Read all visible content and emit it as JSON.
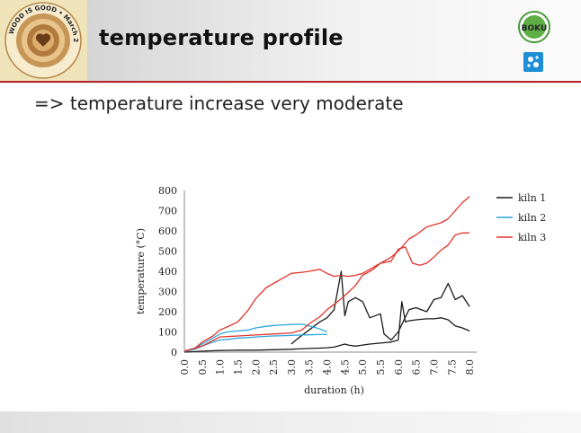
{
  "slide": {
    "title": "temperature profile",
    "bullet": "=> temperature increase very moderate",
    "logo_text": "WOOD IS GOOD • March 21st WORLD WOOD DAY",
    "boku_text": "BOKU"
  },
  "colors": {
    "accent_red": "#b8242b",
    "kiln1": "#1a1a1a",
    "kiln2": "#2aa7dc",
    "kiln3": "#e0342a"
  },
  "chart_data": {
    "type": "line",
    "xlabel": "duration (h)",
    "ylabel": "temperature (°C)",
    "xlim": [
      0,
      8.2
    ],
    "ylim": [
      0,
      800
    ],
    "xticks": [
      "0.0",
      "0.5",
      "1.0",
      "1.5",
      "2.0",
      "2.5",
      "3.0",
      "3.5",
      "4.0",
      "4.5",
      "5.0",
      "5.5",
      "6.0",
      "6.5",
      "7.0",
      "7.5",
      "8.0"
    ],
    "yticks": [
      "0",
      "100",
      "200",
      "300",
      "400",
      "500",
      "600",
      "700",
      "800"
    ],
    "legend_position": "top-right",
    "grid": "none",
    "series": [
      {
        "name": "kiln 1",
        "color": "#1a1a1a",
        "x": [
          0,
          0.5,
          1.0,
          1.5,
          2.0,
          2.5,
          3.0,
          3.2,
          3.5,
          3.8,
          4.0,
          4.2,
          4.4,
          4.5,
          4.6,
          4.8,
          5.0,
          5.2,
          5.5,
          5.8,
          6.0,
          6.1,
          6.2,
          6.3,
          6.5,
          6.8,
          7.0,
          7.2,
          7.4,
          7.6,
          7.8,
          8.0
        ],
        "y": [
          0,
          5,
          8,
          10,
          10,
          12,
          14,
          16,
          18,
          20,
          22,
          25,
          35,
          40,
          35,
          30,
          35,
          40,
          45,
          50,
          60,
          250,
          150,
          155,
          160,
          165,
          165,
          170,
          160,
          130,
          120,
          105
        ]
      },
      {
        "name": "kiln 1",
        "color": "#1a1a1a",
        "x": [
          3.0,
          3.2,
          3.5,
          3.8,
          4.0,
          4.2,
          4.4,
          4.5,
          4.6,
          4.8,
          5.0,
          5.2,
          5.5,
          5.6,
          5.8,
          6.0,
          6.3,
          6.5,
          6.8,
          7.0,
          7.2,
          7.4,
          7.6,
          7.8,
          8.0
        ],
        "y": [
          40,
          70,
          110,
          150,
          170,
          210,
          400,
          180,
          250,
          270,
          250,
          170,
          190,
          90,
          60,
          100,
          210,
          220,
          200,
          260,
          270,
          340,
          260,
          280,
          225
        ]
      },
      {
        "name": "kiln 2",
        "color": "#2aa7dc",
        "x": [
          0,
          0.3,
          0.5,
          0.8,
          1.0,
          1.2,
          1.5,
          1.8,
          2.0,
          2.3,
          2.5,
          2.8,
          3.0,
          3.3,
          3.5,
          3.8,
          4.0
        ],
        "y": [
          5,
          20,
          40,
          70,
          90,
          100,
          105,
          110,
          120,
          128,
          132,
          135,
          137,
          138,
          130,
          115,
          100
        ]
      },
      {
        "name": "kiln 2",
        "color": "#2aa7dc",
        "x": [
          0,
          0.3,
          0.5,
          0.8,
          1.0,
          1.3,
          1.5,
          1.8,
          2.0,
          2.3,
          2.5,
          2.8,
          3.0,
          3.3,
          3.5,
          3.8,
          4.0
        ],
        "y": [
          3,
          15,
          30,
          50,
          60,
          65,
          70,
          72,
          75,
          78,
          80,
          82,
          83,
          85,
          86,
          87,
          88
        ]
      },
      {
        "name": "kiln 3",
        "color": "#e0342a",
        "x": [
          0,
          0.3,
          0.5,
          0.8,
          1.0,
          1.2,
          1.5,
          1.8,
          2.0,
          2.3,
          2.5,
          2.8,
          3.0,
          3.3,
          3.5,
          3.8,
          4.0,
          4.2,
          4.4,
          4.6,
          4.8,
          5.0,
          5.2,
          5.5,
          5.8,
          6.0,
          6.3,
          6.5,
          6.8,
          7.0,
          7.2,
          7.4,
          7.6,
          7.8,
          8.0
        ],
        "y": [
          5,
          20,
          50,
          80,
          110,
          125,
          150,
          210,
          265,
          320,
          340,
          370,
          390,
          395,
          400,
          410,
          390,
          375,
          380,
          375,
          380,
          390,
          410,
          440,
          470,
          500,
          560,
          580,
          620,
          630,
          640,
          660,
          700,
          740,
          770
        ]
      },
      {
        "name": "kiln 3",
        "color": "#e0342a",
        "x": [
          0,
          0.5,
          1.0,
          1.5,
          2.0,
          2.5,
          3.0,
          3.3,
          3.5,
          3.8,
          4.0,
          4.3,
          4.5,
          4.8,
          5.0,
          5.3,
          5.5,
          5.8,
          6.0,
          6.2,
          6.4,
          6.6,
          6.8,
          7.0,
          7.2,
          7.4,
          7.6,
          7.8,
          8.0
        ],
        "y": [
          5,
          30,
          75,
          80,
          85,
          90,
          95,
          110,
          140,
          175,
          210,
          250,
          280,
          330,
          380,
          410,
          440,
          450,
          510,
          520,
          440,
          430,
          440,
          470,
          505,
          530,
          580,
          590,
          590
        ]
      }
    ]
  }
}
